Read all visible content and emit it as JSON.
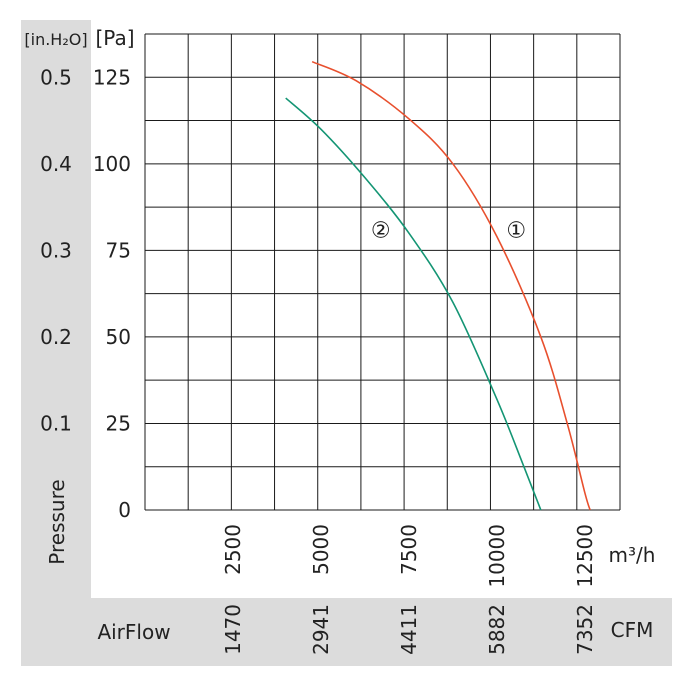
{
  "labels": {
    "y_inh2o_unit": "[in.H₂O]",
    "y_pa_unit": "[Pa]",
    "pressure": "Pressure",
    "airflow": "AirFlow",
    "x_m3h_unit": "m³/h",
    "x_cfm_unit": "CFM"
  },
  "colors": {
    "panel_gray": "#dcdcdc",
    "grid": "#1a1a1a",
    "text": "#222222",
    "curve_1": "#e8502e",
    "curve_2": "#149574"
  },
  "chart_data": {
    "type": "line",
    "x_unit": "m³/h",
    "y_unit": "Pa",
    "xlim": [
      0,
      13500
    ],
    "ylim": [
      0,
      137.5
    ],
    "x_ticks": [
      "2500",
      "5000",
      "7500",
      "10000",
      "12500"
    ],
    "x_ticks_values": [
      2500,
      5000,
      7500,
      10000,
      12500
    ],
    "x_ticks_cfm": [
      "1470",
      "2941",
      "4411",
      "5882",
      "7352"
    ],
    "y_ticks_pa": [
      "0",
      "25",
      "50",
      "75",
      "100",
      "125"
    ],
    "y_ticks_pa_values": [
      0,
      25,
      50,
      75,
      100,
      125
    ],
    "y_ticks_inh2o": [
      "0.1",
      "0.2",
      "0.3",
      "0.4",
      "0.5"
    ],
    "y_ticks_inh2o_values_pa": [
      25,
      50,
      75,
      100,
      125
    ],
    "grid": true,
    "series": [
      {
        "name": "①",
        "color": "#e8502e",
        "label_at": [
          10550,
          81
        ],
        "points": [
          [
            4750,
            129.5
          ],
          [
            6000,
            124
          ],
          [
            7500,
            113
          ],
          [
            8750,
            100
          ],
          [
            10000,
            79
          ],
          [
            11250,
            50
          ],
          [
            12000,
            25
          ],
          [
            12500,
            5
          ],
          [
            12650,
            0
          ]
        ]
      },
      {
        "name": "②",
        "color": "#149574",
        "label_at": [
          6700,
          81
        ],
        "points": [
          [
            4000,
            119
          ],
          [
            5000,
            110
          ],
          [
            6250,
            96
          ],
          [
            7500,
            80
          ],
          [
            8750,
            60
          ],
          [
            10000,
            32
          ],
          [
            10750,
            13
          ],
          [
            11250,
            0
          ]
        ]
      }
    ]
  }
}
